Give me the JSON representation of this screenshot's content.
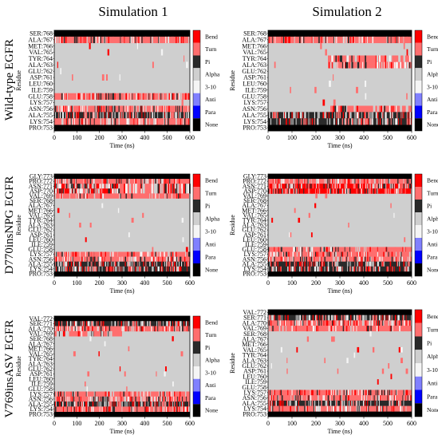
{
  "figure": {
    "column_titles": [
      "Simulation 1",
      "Simulation 2"
    ],
    "row_titles": [
      "Wild-type EGFR",
      "D770insNPG EGFR",
      "V769insASV EGFR"
    ]
  },
  "legend_colors": {
    "Bend": "#ff0000",
    "Turn": "#ff6e6e",
    "Pi": "#2a2a2a",
    "Alpha": "#cfcfcf",
    "3-10": "#f5f5f5",
    "Anti": "#8080ff",
    "Para": "#0000ff",
    "None": "#000000"
  },
  "chart_data": [
    {
      "type": "heatmap",
      "panel": "Wild-type EGFR — Simulation 1",
      "xlabel": "Time (ns)",
      "ylabel": "Residue",
      "xlim": [
        0,
        600
      ],
      "xticks": [
        0,
        100,
        200,
        300,
        400,
        500,
        600
      ],
      "residues": [
        "SER:768",
        "ALA:767",
        "MET:766",
        "VAL:765",
        "TYR:764",
        "ALA:763",
        "GLU:762",
        "ASP:761",
        "LEU:760",
        "ILE:759",
        "GLU:758",
        "LYS:757",
        "ASN:756",
        "ALA:755",
        "LYS:754",
        "PRO:753"
      ],
      "legend": [
        "Bend",
        "Turn",
        "Pi",
        "Alpha",
        "3-10",
        "Anti",
        "Para",
        "None"
      ]
    },
    {
      "type": "heatmap",
      "panel": "Wild-type EGFR — Simulation 2",
      "xlabel": "Time (ns)",
      "ylabel": "Residue",
      "xlim": [
        0,
        600
      ],
      "xticks": [
        0,
        100,
        200,
        300,
        400,
        500,
        600
      ],
      "residues": [
        "SER:768",
        "ALA:767",
        "MET:766",
        "VAL:765",
        "TYR:764",
        "ALA:763",
        "GLU:762",
        "ASP:761",
        "LEU:760",
        "ILE:759",
        "GLU:758",
        "LYS:757",
        "ASN:756",
        "ALA:755",
        "LYS:754",
        "PRO:753"
      ],
      "legend": [
        "Bend",
        "Turn",
        "Pi",
        "Alpha",
        "3-10",
        "Anti",
        "Para",
        "None"
      ]
    },
    {
      "type": "heatmap",
      "panel": "D770insNPG EGFR — Simulation 1",
      "xlabel": "Time (ns)",
      "ylabel": "Residue",
      "xlim": [
        0,
        600
      ],
      "xticks": [
        0,
        100,
        200,
        300,
        400,
        500,
        600
      ],
      "residues": [
        "GLY:773",
        "PRO:772",
        "ASN:771",
        "ASP:770",
        "VAL:769",
        "SER:768",
        "ALA:767",
        "MET:766",
        "VAL:765",
        "TYR:764",
        "ALA:763",
        "GLU:762",
        "ASP:761",
        "LEU:760",
        "ILE:759",
        "GLU:758",
        "LYS:757",
        "ASN:756",
        "ALA:755",
        "LYS:754",
        "PRO:753"
      ],
      "legend": [
        "Bend",
        "Turn",
        "Pi",
        "Alpha",
        "3-10",
        "Anti",
        "Para",
        "None"
      ]
    },
    {
      "type": "heatmap",
      "panel": "D770insNPG EGFR — Simulation 2",
      "xlabel": "Time (ns)",
      "ylabel": "Residue",
      "xlim": [
        0,
        600
      ],
      "xticks": [
        0,
        100,
        200,
        300,
        400,
        500,
        600
      ],
      "residues": [
        "GLY:773",
        "PRO:772",
        "ASN:771",
        "ASP:770",
        "VAL:769",
        "SER:768",
        "ALA:767",
        "MET:766",
        "VAL:765",
        "TYR:764",
        "ALA:763",
        "GLU:762",
        "ASP:761",
        "LEU:760",
        "ILE:759",
        "GLU:758",
        "LYS:757",
        "ASN:756",
        "ALA:755",
        "LYS:754",
        "PRO:753"
      ],
      "legend": [
        "Bend",
        "Turn",
        "Pi",
        "Alpha",
        "3-10",
        "Anti",
        "Para",
        "None"
      ]
    },
    {
      "type": "heatmap",
      "panel": "V769insASV EGFR — Simulation 1",
      "xlabel": "Time (ns)",
      "ylabel": "Residue",
      "xlim": [
        0,
        600
      ],
      "xticks": [
        0,
        100,
        200,
        300,
        400,
        500,
        600
      ],
      "residues": [
        "VAL:772",
        "SER:771",
        "ALA:770",
        "VAL:769",
        "SER:768",
        "ALA:767",
        "MET:766",
        "VAL:765",
        "TYR:764",
        "ALA:763",
        "GLU:762",
        "ASP:761",
        "LEU:760",
        "ILE:759",
        "GLU:758",
        "LYS:757",
        "ASN:756",
        "ALA:755",
        "LYS:754",
        "PRO:753"
      ],
      "legend": [
        "Bend",
        "Turn",
        "Pi",
        "Alpha",
        "3-10",
        "Anti",
        "Para",
        "None"
      ]
    },
    {
      "type": "heatmap",
      "panel": "V769insASV EGFR — Simulation 2",
      "xlabel": "Time (ns)",
      "ylabel": "Residue",
      "xlim": [
        0,
        600
      ],
      "xticks": [
        0,
        100,
        200,
        300,
        400,
        500,
        600
      ],
      "residues": [
        "VAL:772",
        "SER:771",
        "ALA:770",
        "VAL:769",
        "SER:768",
        "ALA:767",
        "MET:766",
        "VAL:765",
        "TYR:764",
        "ALA:763",
        "GLU:762",
        "ASP:761",
        "LEU:760",
        "ILE:759",
        "GLU:758",
        "LYS:757",
        "ASN:756",
        "ALA:755",
        "LYS:754",
        "PRO:753"
      ],
      "legend": [
        "Bend",
        "Turn",
        "Pi",
        "Alpha",
        "3-10",
        "Anti",
        "Para",
        "None"
      ]
    }
  ]
}
